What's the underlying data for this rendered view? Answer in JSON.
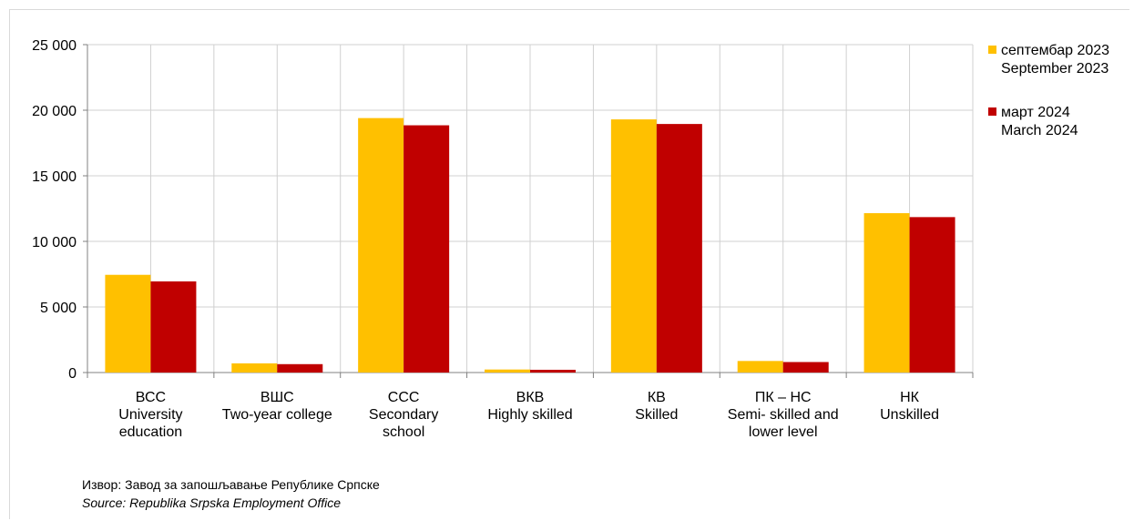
{
  "chart_data": {
    "type": "bar",
    "categories": [
      [
        "ВСС",
        "University",
        "education"
      ],
      [
        "ВШС",
        "Two-year college"
      ],
      [
        "ССС",
        "Secondary",
        "school"
      ],
      [
        "ВКВ",
        "Highly skilled"
      ],
      [
        "КВ",
        "Skilled"
      ],
      [
        "ПК – НС",
        "Semi- skilled and",
        "lower level"
      ],
      [
        "НК",
        "Unskilled"
      ]
    ],
    "series": [
      {
        "name": [
          "септембар 2023",
          "September 2023"
        ],
        "color": "#FFC000",
        "values": [
          7450,
          700,
          19400,
          230,
          19300,
          880,
          12150
        ]
      },
      {
        "name": [
          "март 2024",
          "March 2024"
        ],
        "color": "#C00000",
        "values": [
          6950,
          640,
          18850,
          210,
          18950,
          800,
          11850
        ]
      }
    ],
    "ylim": [
      0,
      25000
    ],
    "yticks": [
      0,
      5000,
      10000,
      15000,
      20000,
      25000
    ],
    "ytick_labels": [
      "0",
      "5 000",
      "10 000",
      "15 000",
      "20 000",
      "25 000"
    ],
    "grid": true,
    "legend": "right"
  },
  "source": {
    "sr": "Извор: Завод за запошљавање Републике Српске",
    "en": "Source: Republika Srpska Employment Office"
  }
}
